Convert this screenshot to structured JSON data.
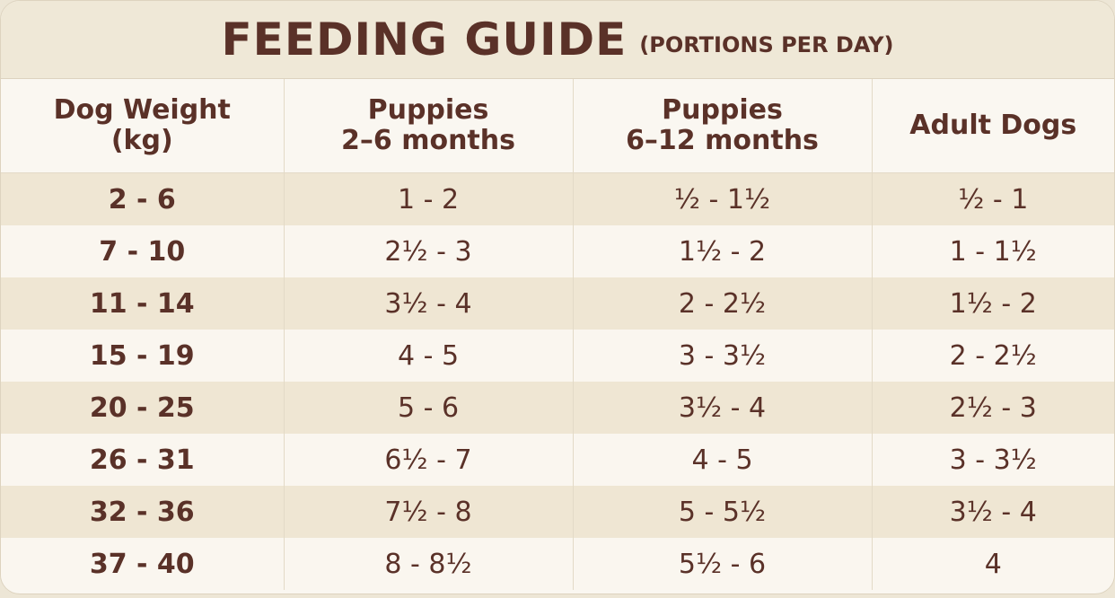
{
  "header": {
    "title": "FEEDING GUIDE",
    "subtitle": "(PORTIONS PER DAY)"
  },
  "table": {
    "headers": [
      "Dog Weight\n(kg)",
      "Puppies\n2–6 months",
      "Puppies\n6–12 months",
      "Adult Dogs"
    ],
    "rows": [
      [
        "2 - 6",
        "1 - 2",
        "½ - 1½",
        "½ - 1"
      ],
      [
        "7 - 10",
        "2½ - 3",
        "1½ - 2",
        "1 - 1½"
      ],
      [
        "11 - 14",
        "3½ - 4",
        "2 - 2½",
        "1½ - 2"
      ],
      [
        "15 - 19",
        "4 - 5",
        "3 - 3½",
        "2 - 2½"
      ],
      [
        "20 - 25",
        "5 - 6",
        "3½ - 4",
        "2½ - 3"
      ],
      [
        "26 - 31",
        "6½ - 7",
        "4 - 5",
        "3 - 3½"
      ],
      [
        "32 - 36",
        "7½ - 8",
        "5 - 5½",
        "3½ - 4"
      ],
      [
        "37 - 40",
        "8 - 8½",
        "5½ - 6",
        "4"
      ]
    ]
  }
}
